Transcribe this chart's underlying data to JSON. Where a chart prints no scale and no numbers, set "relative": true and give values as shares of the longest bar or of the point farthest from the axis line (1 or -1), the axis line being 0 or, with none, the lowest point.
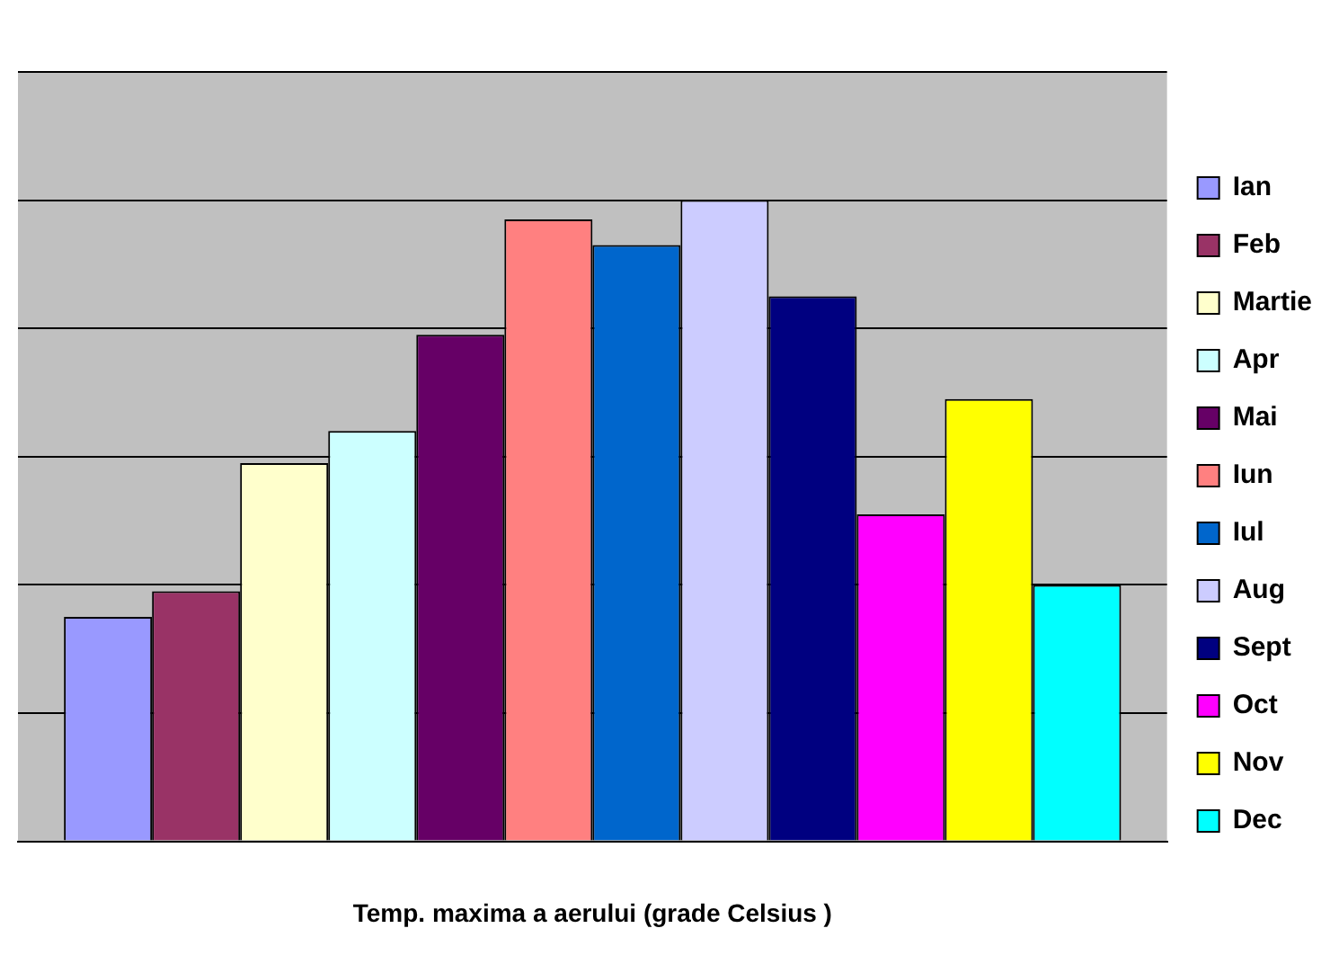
{
  "chart_data": {
    "type": "bar",
    "relative": true,
    "xlabel": "Temp. maxima a aerului (grade Celsius )",
    "categories": [
      null
    ],
    "grid": "y",
    "legend": "right",
    "series": [
      {
        "name": "Ian",
        "color": "#9999ff",
        "values": [
          0.35
        ]
      },
      {
        "name": "Feb",
        "color": "#993366",
        "values": [
          0.39
        ]
      },
      {
        "name": "Martie",
        "color": "#ffffcc",
        "values": [
          0.59
        ]
      },
      {
        "name": "Apr",
        "color": "#ccffff",
        "values": [
          0.64
        ]
      },
      {
        "name": "Mai",
        "color": "#660066",
        "values": [
          0.79
        ]
      },
      {
        "name": "Iun",
        "color": "#ff8080",
        "values": [
          0.97
        ]
      },
      {
        "name": "Iul",
        "color": "#0066cc",
        "values": [
          0.93
        ]
      },
      {
        "name": "Aug",
        "color": "#ccccff",
        "values": [
          1
        ]
      },
      {
        "name": "Sept",
        "color": "#000080",
        "values": [
          0.85
        ]
      },
      {
        "name": "Oct",
        "color": "#ff00ff",
        "values": [
          0.51
        ]
      },
      {
        "name": "Nov",
        "color": "#ffff00",
        "values": [
          0.69
        ]
      },
      {
        "name": "Dec",
        "color": "#00ffff",
        "values": [
          0.4
        ]
      }
    ]
  }
}
